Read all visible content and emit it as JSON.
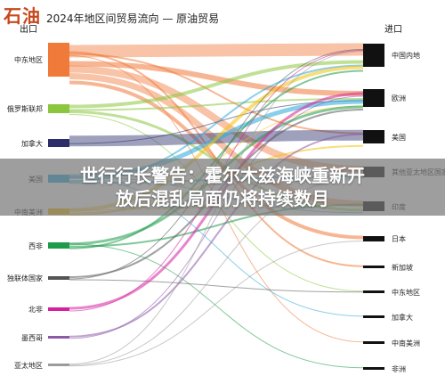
{
  "header": {
    "brand": "石油",
    "subtitle": "2024年地区间贸易流向 — 原油贸易"
  },
  "columns": {
    "left": "出口",
    "right": "进口"
  },
  "banner": {
    "line1": "世行行长警告：霍尔木兹海峡重新开",
    "line2": "放后混乱局面仍将持续数月"
  },
  "exporters": [
    {
      "name": "中东地区",
      "color": "#f07a3a"
    },
    {
      "name": "俄罗斯联邦",
      "color": "#8cc63f"
    },
    {
      "name": "加拿大",
      "color": "#2b2e6b"
    },
    {
      "name": "美国",
      "color": "#29a8d8"
    },
    {
      "name": "中南美洲",
      "color": "#f2c20f"
    },
    {
      "name": "西非",
      "color": "#1e9a4a"
    },
    {
      "name": "独联体国家",
      "color": "#555555"
    },
    {
      "name": "北非",
      "color": "#d4219e"
    },
    {
      "name": "墨西哥",
      "color": "#8d5aa8"
    },
    {
      "name": "亚太地区",
      "color": "#9b9b9b"
    }
  ],
  "importers": [
    {
      "name": "中国内地",
      "color": "#111111"
    },
    {
      "name": "欧洲",
      "color": "#111111"
    },
    {
      "name": "美国",
      "color": "#111111"
    },
    {
      "name": "其他亚太地区国家",
      "color": "#111111"
    },
    {
      "name": "印度",
      "color": "#111111"
    },
    {
      "name": "日本",
      "color": "#111111"
    },
    {
      "name": "新加坡",
      "color": "#111111"
    },
    {
      "name": "中东地区",
      "color": "#111111"
    },
    {
      "name": "加拿大",
      "color": "#111111"
    },
    {
      "name": "中南美洲",
      "color": "#111111"
    },
    {
      "name": "非洲",
      "color": "#111111"
    }
  ]
}
